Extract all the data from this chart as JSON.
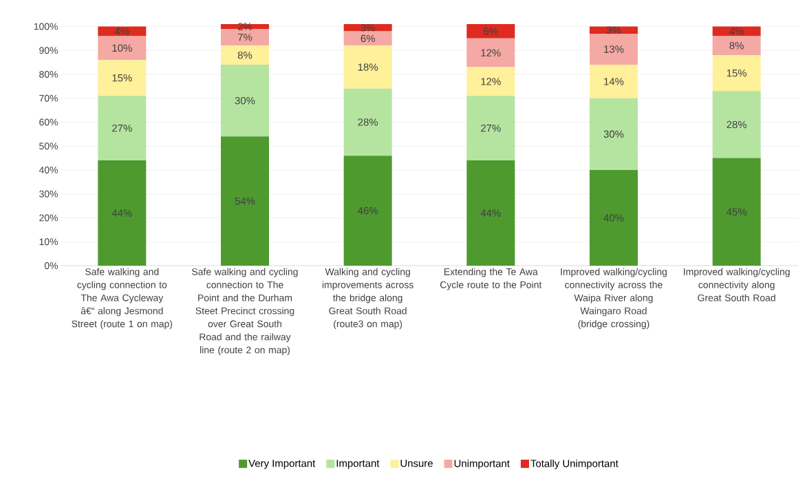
{
  "chart_data": {
    "type": "bar",
    "stacked": true,
    "categories": [
      "Safe walking and cycling connection to The Awa Cycleway â€“ along Jesmond Street (route 1 on map)",
      "Safe walking and cycling connection to The Point and the Durham Steet Precinct crossing over Great South Road and the railway line (route 2 on map)",
      "Walking and cycling improvements across the bridge along Great South Road (route3 on map)",
      "Extending the Te Awa Cycle route to the Point",
      "Improved walking/cycling connectivity across the Waipa River along Waingaro Road (bridge crossing)",
      "Improved walking/cycling connectivity along Great South Road"
    ],
    "series": [
      {
        "name": "Very Important",
        "color": "#4e9a2f",
        "values": [
          44,
          54,
          46,
          44,
          40,
          45
        ],
        "value_labels": [
          "44%",
          "54%",
          "46%",
          "44%",
          "40%",
          "45%"
        ]
      },
      {
        "name": "Important",
        "color": "#b5e4a0",
        "values": [
          27,
          30,
          28,
          27,
          30,
          28
        ],
        "value_labels": [
          "27%",
          "30%",
          "28%",
          "27%",
          "30%",
          "28%"
        ]
      },
      {
        "name": "Unsure",
        "color": "#fff09a",
        "values": [
          15,
          8,
          18,
          12,
          14,
          15
        ],
        "value_labels": [
          "15%",
          "8%",
          "18%",
          "12%",
          "14%",
          "15%"
        ]
      },
      {
        "name": "Unimportant",
        "color": "#f4a9a4",
        "values": [
          10,
          7,
          6,
          12,
          13,
          8
        ],
        "value_labels": [
          "10%",
          "7%",
          "6%",
          "12%",
          "13%",
          "8%"
        ]
      },
      {
        "name": "Totally Unimportant",
        "color": "#df2a1f",
        "values": [
          4,
          2,
          3,
          6,
          3,
          4
        ],
        "value_labels": [
          "4%",
          "2%",
          "3%",
          "6%",
          "3%",
          "4%"
        ]
      }
    ],
    "ylim": [
      0,
      101
    ],
    "yticks": [
      {
        "value": 0,
        "label": "0%"
      },
      {
        "value": 10,
        "label": "10%"
      },
      {
        "value": 20,
        "label": "20%"
      },
      {
        "value": 30,
        "label": "30%"
      },
      {
        "value": 40,
        "label": "40%"
      },
      {
        "value": 50,
        "label": "50%"
      },
      {
        "value": 60,
        "label": "60%"
      },
      {
        "value": 70,
        "label": "70%"
      },
      {
        "value": 80,
        "label": "80%"
      },
      {
        "value": 90,
        "label": "90%"
      },
      {
        "value": 100,
        "label": "100%"
      }
    ],
    "grid": "y",
    "legend": "bottom"
  }
}
